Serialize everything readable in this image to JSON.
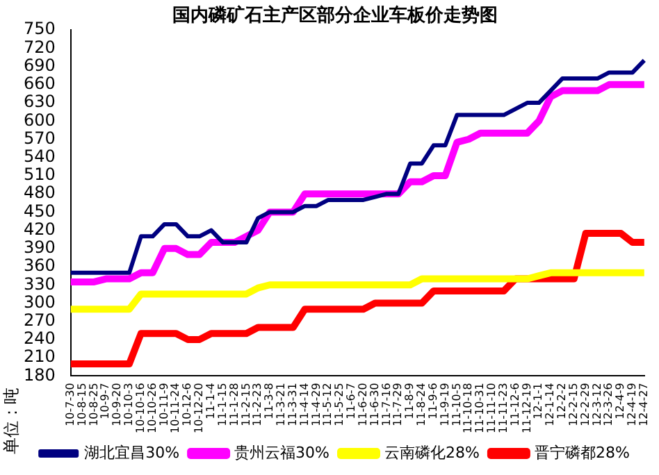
{
  "chart_data": {
    "type": "line",
    "title": "国内磷矿石主产区部分企业车板价走势图",
    "ylabel": "单位：吨",
    "categories": [
      "10-7-30",
      "10-8-15",
      "10-8-25",
      "10-9-7",
      "10-9-20",
      "10-10-3",
      "10-10-16",
      "10-10-26",
      "10-11-9",
      "10-11-24",
      "10-12-6",
      "10-12-20",
      "11-1-4",
      "11-1-15",
      "11-1-28",
      "11-2-15",
      "11-2-23",
      "11-3-8",
      "11-3-21",
      "11-3-31",
      "11-4-14",
      "11-4-29",
      "11-5-12",
      "11-5-25",
      "11-6-7",
      "11-6-20",
      "11-6-30",
      "11-7-16",
      "11-7-29",
      "11-8-9",
      "11-8-24",
      "11-9-6",
      "11-9-19",
      "11-10-5",
      "11-10-18",
      "11-10-31",
      "11-11-10",
      "11-11-23",
      "11-12-6",
      "11-12-19",
      "12-1-1",
      "12-1-14",
      "12-2-2",
      "12-2-15",
      "12-2-29",
      "12-3-12",
      "12-3-26",
      "12-4-9",
      "12-4-19",
      "12-4-27"
    ],
    "series": [
      {
        "name": "湖北宜昌30%",
        "color": "#000080",
        "values": [
          350,
          350,
          350,
          350,
          350,
          350,
          410,
          410,
          430,
          430,
          410,
          410,
          420,
          400,
          400,
          400,
          440,
          450,
          450,
          450,
          460,
          460,
          470,
          470,
          470,
          470,
          475,
          480,
          480,
          530,
          530,
          560,
          560,
          610,
          610,
          610,
          610,
          610,
          620,
          630,
          630,
          650,
          670,
          670,
          670,
          670,
          680,
          680,
          680,
          700
        ]
      },
      {
        "name": "贵州云福30%",
        "color": "#ff00ff",
        "values": [
          335,
          335,
          335,
          340,
          340,
          340,
          350,
          350,
          390,
          390,
          380,
          380,
          400,
          400,
          400,
          410,
          420,
          450,
          450,
          450,
          480,
          480,
          480,
          480,
          480,
          480,
          480,
          480,
          480,
          500,
          500,
          510,
          510,
          565,
          570,
          580,
          580,
          580,
          580,
          580,
          600,
          640,
          650,
          650,
          650,
          650,
          660,
          660,
          660,
          660
        ]
      },
      {
        "name": "云南磷化28%",
        "color": "#ffff00",
        "values": [
          290,
          290,
          290,
          290,
          290,
          290,
          315,
          315,
          315,
          315,
          315,
          315,
          315,
          315,
          315,
          315,
          325,
          330,
          330,
          330,
          330,
          330,
          330,
          330,
          330,
          330,
          330,
          330,
          330,
          330,
          340,
          340,
          340,
          340,
          340,
          340,
          340,
          340,
          340,
          340,
          345,
          350,
          350,
          350,
          350,
          350,
          350,
          350,
          350,
          350
        ]
      },
      {
        "name": "晋宁磷都28%",
        "color": "#ff0000",
        "values": [
          200,
          200,
          200,
          200,
          200,
          200,
          250,
          250,
          250,
          250,
          240,
          240,
          250,
          250,
          250,
          250,
          260,
          260,
          260,
          260,
          290,
          290,
          290,
          290,
          290,
          290,
          300,
          300,
          300,
          300,
          300,
          320,
          320,
          320,
          320,
          320,
          320,
          320,
          340,
          340,
          340,
          340,
          340,
          340,
          415,
          415,
          415,
          415,
          400,
          400
        ]
      }
    ],
    "ylim": [
      180,
      750
    ],
    "yticks": [
      180,
      210,
      240,
      270,
      300,
      330,
      360,
      390,
      420,
      450,
      480,
      510,
      540,
      570,
      600,
      630,
      660,
      690,
      720,
      750
    ],
    "grid": false,
    "legend": "bottom",
    "marker": "none",
    "line_style": "solid"
  }
}
